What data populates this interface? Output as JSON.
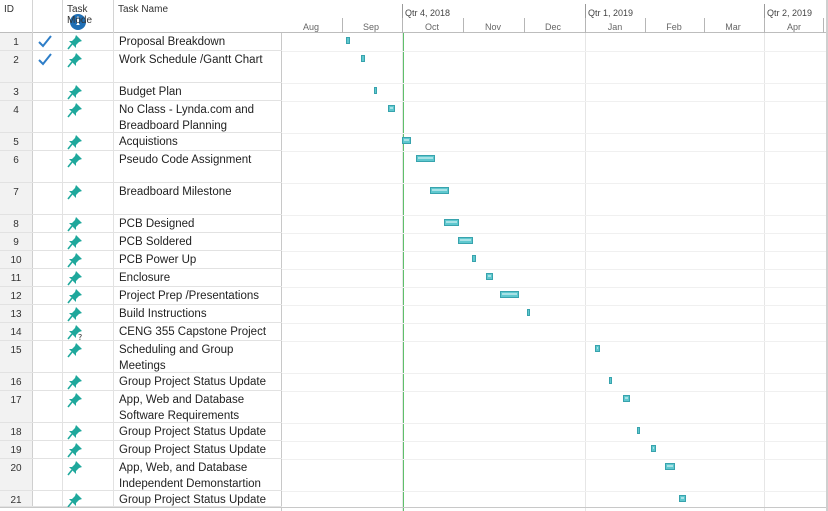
{
  "header": {
    "id": "ID",
    "task_mode": "Task Mode",
    "task_name": "Task Name",
    "info_icon": "info-circle-icon"
  },
  "timescale": {
    "quarters": [
      "Qtr 4, 2018",
      "Qtr 1, 2019",
      "Qtr 2, 2019"
    ],
    "months": [
      "Aug",
      "Sep",
      "Oct",
      "Nov",
      "Dec",
      "Jan",
      "Feb",
      "Mar",
      "Apr"
    ]
  },
  "colors": {
    "bar": "#5fc8cf",
    "bar_border": "#38a3ad",
    "today_line": "#5fbf6b",
    "check": "#2e7ec8",
    "pin": "#1fa89c"
  },
  "tasks": [
    {
      "id": "1",
      "name": "Proposal Breakdown",
      "done": true
    },
    {
      "id": "2",
      "name": "Work Schedule /Gantt Chart",
      "done": true
    },
    {
      "id": "3",
      "name": "Budget Plan"
    },
    {
      "id": "4",
      "name": "No Class - Lynda.com and Breadboard Planning"
    },
    {
      "id": "5",
      "name": "Acquistions"
    },
    {
      "id": "6",
      "name": "Pseudo Code Assignment"
    },
    {
      "id": "7",
      "name": "Breadboard Milestone"
    },
    {
      "id": "8",
      "name": "PCB Designed"
    },
    {
      "id": "9",
      "name": "PCB Soldered"
    },
    {
      "id": "10",
      "name": "PCB Power Up"
    },
    {
      "id": "11",
      "name": "Enclosure"
    },
    {
      "id": "12",
      "name": "Project Prep /Presentations"
    },
    {
      "id": "13",
      "name": "Build Instructions"
    },
    {
      "id": "14",
      "name": "CENG 355 Capstone Project",
      "mode_unscheduled": true
    },
    {
      "id": "15",
      "name": "Scheduling and Group Meetings"
    },
    {
      "id": "16",
      "name": "Group Project Status Update"
    },
    {
      "id": "17",
      "name": "App, Web and Database Software Requirements"
    },
    {
      "id": "18",
      "name": "Group Project Status Update"
    },
    {
      "id": "19",
      "name": "Group Project Status Update"
    },
    {
      "id": "20",
      "name": "App, Web, and Database Independent Demonstartion"
    },
    {
      "id": "21",
      "name": "Group Project Status Update"
    }
  ]
}
